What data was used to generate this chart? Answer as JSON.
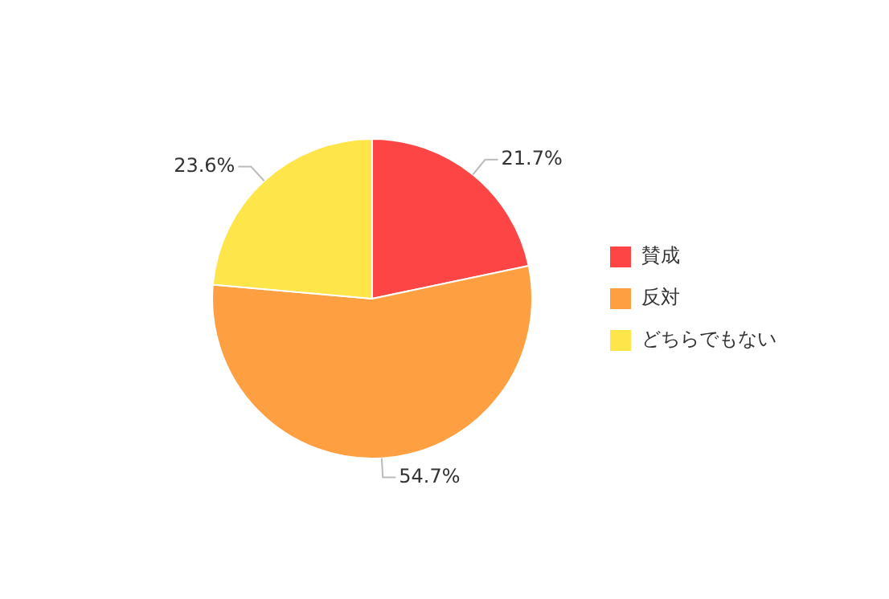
{
  "chart_data": {
    "type": "pie",
    "categories": [
      "賛成",
      "反対",
      "どちらでもない"
    ],
    "values": [
      21.7,
      54.7,
      23.6
    ],
    "colors": [
      "#fe4545",
      "#fea041",
      "#fee54a"
    ],
    "value_labels": [
      "21.7%",
      "54.7%",
      "23.6%"
    ],
    "legend": "right"
  }
}
